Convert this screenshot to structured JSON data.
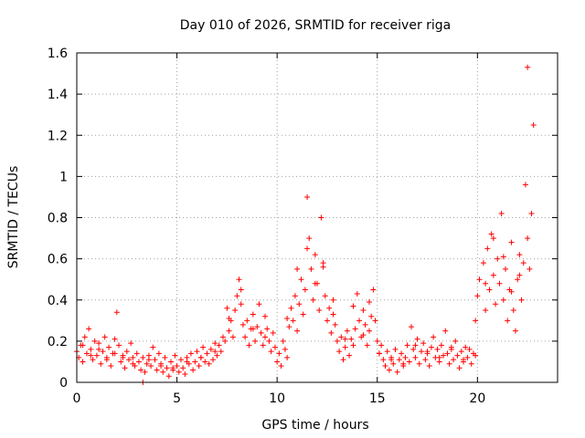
{
  "chart_data": {
    "type": "scatter",
    "title": "Day 010 of 2026, SRMTID for receiver riga",
    "xlabel": "GPS time / hours",
    "ylabel": "SRMTID / TECUs",
    "xlim": [
      0,
      24
    ],
    "ylim": [
      0,
      1.6
    ],
    "xticks": [
      0,
      5,
      10,
      15,
      20
    ],
    "xtick_labels": [
      "0",
      "5",
      "10",
      "15",
      "20"
    ],
    "yticks": [
      0,
      0.2,
      0.4,
      0.6,
      0.8,
      1.0,
      1.2,
      1.4,
      1.6
    ],
    "ytick_labels": [
      "0",
      "0.2",
      "0.4",
      "0.6",
      "0.8",
      "1",
      "1.2",
      "1.4",
      "1.6"
    ],
    "grid": true,
    "marker": "+",
    "color": "#ff0000",
    "series": [
      {
        "name": "SRMTID",
        "x": [
          0.0,
          0.1,
          0.2,
          0.3,
          0.4,
          0.5,
          0.6,
          0.7,
          0.8,
          0.9,
          1.0,
          1.1,
          1.2,
          1.3,
          1.4,
          1.5,
          1.6,
          1.7,
          1.8,
          1.9,
          2.0,
          2.1,
          2.2,
          2.3,
          2.4,
          2.5,
          2.6,
          2.7,
          2.8,
          2.9,
          3.0,
          3.1,
          3.2,
          3.3,
          3.4,
          3.5,
          3.6,
          3.7,
          3.8,
          3.9,
          4.0,
          4.1,
          4.2,
          4.3,
          4.4,
          4.5,
          4.6,
          4.7,
          4.8,
          4.9,
          5.0,
          5.1,
          5.2,
          5.3,
          5.4,
          5.5,
          5.6,
          5.7,
          5.8,
          5.9,
          6.0,
          6.1,
          6.2,
          6.3,
          6.4,
          6.5,
          6.6,
          6.7,
          6.8,
          6.9,
          7.0,
          7.1,
          7.2,
          7.3,
          7.4,
          7.5,
          7.6,
          7.7,
          7.8,
          7.9,
          8.0,
          8.1,
          8.2,
          8.3,
          8.4,
          8.5,
          8.6,
          8.7,
          8.8,
          8.9,
          9.0,
          9.1,
          9.2,
          9.3,
          9.4,
          9.5,
          9.6,
          9.7,
          9.8,
          9.9,
          10.0,
          10.1,
          10.2,
          10.3,
          10.4,
          10.5,
          10.6,
          10.7,
          10.8,
          10.9,
          11.0,
          11.1,
          11.2,
          11.3,
          11.4,
          11.5,
          11.6,
          11.7,
          11.8,
          11.9,
          12.0,
          12.1,
          12.2,
          12.3,
          12.4,
          12.5,
          12.6,
          12.7,
          12.8,
          12.9,
          13.0,
          13.1,
          13.2,
          13.3,
          13.4,
          13.5,
          13.6,
          13.7,
          13.8,
          13.9,
          14.0,
          14.1,
          14.2,
          14.3,
          14.4,
          14.5,
          14.6,
          14.7,
          14.8,
          14.9,
          15.0,
          15.1,
          15.2,
          15.3,
          15.4,
          15.5,
          15.6,
          15.7,
          15.8,
          15.9,
          16.0,
          16.1,
          16.2,
          16.3,
          16.4,
          16.5,
          16.6,
          16.7,
          16.8,
          16.9,
          17.0,
          17.1,
          17.2,
          17.3,
          17.4,
          17.5,
          17.6,
          17.7,
          17.8,
          17.9,
          18.0,
          18.1,
          18.2,
          18.3,
          18.4,
          18.5,
          18.6,
          18.7,
          18.8,
          18.9,
          19.0,
          19.1,
          19.2,
          19.3,
          19.4,
          19.5,
          19.6,
          19.7,
          19.8,
          19.9,
          20.0,
          20.1,
          20.3,
          20.4,
          20.5,
          20.6,
          20.7,
          20.8,
          20.9,
          21.0,
          21.1,
          21.2,
          21.3,
          21.4,
          21.5,
          21.6,
          21.7,
          21.8,
          21.9,
          22.0,
          22.1,
          22.2,
          22.3,
          22.4,
          22.5,
          22.6,
          22.7,
          22.8,
          0.3,
          0.7,
          1.1,
          1.5,
          1.9,
          2.3,
          2.8,
          3.6,
          4.2,
          4.8,
          5.5,
          6.2,
          6.9,
          7.6,
          8.2,
          8.8,
          9.4,
          10.5,
          11.0,
          11.5,
          11.9,
          12.3,
          12.8,
          13.4,
          13.8,
          14.3,
          14.6,
          15.1,
          15.7,
          16.3,
          16.9,
          17.5,
          18.1,
          18.7,
          19.3,
          19.9,
          20.4,
          20.8,
          21.3,
          21.7,
          22.1,
          22.5,
          3.3
        ],
        "y": [
          0.15,
          0.12,
          0.18,
          0.1,
          0.22,
          0.14,
          0.26,
          0.16,
          0.11,
          0.2,
          0.13,
          0.19,
          0.09,
          0.15,
          0.22,
          0.12,
          0.17,
          0.08,
          0.14,
          0.21,
          0.34,
          0.18,
          0.1,
          0.13,
          0.07,
          0.15,
          0.11,
          0.19,
          0.12,
          0.08,
          0.14,
          0.1,
          0.06,
          0.12,
          0.05,
          0.09,
          0.13,
          0.08,
          0.17,
          0.11,
          0.06,
          0.14,
          0.09,
          0.05,
          0.12,
          0.07,
          0.03,
          0.1,
          0.06,
          0.13,
          0.08,
          0.05,
          0.11,
          0.07,
          0.04,
          0.12,
          0.09,
          0.14,
          0.06,
          0.1,
          0.15,
          0.08,
          0.12,
          0.17,
          0.1,
          0.14,
          0.09,
          0.16,
          0.11,
          0.19,
          0.13,
          0.18,
          0.15,
          0.22,
          0.2,
          0.36,
          0.25,
          0.3,
          0.22,
          0.35,
          0.42,
          0.5,
          0.38,
          0.28,
          0.22,
          0.3,
          0.18,
          0.26,
          0.33,
          0.2,
          0.27,
          0.38,
          0.24,
          0.18,
          0.32,
          0.26,
          0.2,
          0.15,
          0.24,
          0.17,
          0.1,
          0.14,
          0.08,
          0.2,
          0.16,
          0.12,
          0.27,
          0.36,
          0.3,
          0.42,
          0.25,
          0.38,
          0.5,
          0.33,
          0.45,
          0.9,
          0.7,
          0.55,
          0.4,
          0.62,
          0.48,
          0.35,
          0.8,
          0.58,
          0.42,
          0.3,
          0.36,
          0.24,
          0.4,
          0.28,
          0.2,
          0.15,
          0.22,
          0.11,
          0.17,
          0.25,
          0.13,
          0.21,
          0.18,
          0.26,
          0.43,
          0.3,
          0.22,
          0.35,
          0.28,
          0.18,
          0.25,
          0.32,
          0.45,
          0.3,
          0.2,
          0.14,
          0.18,
          0.11,
          0.08,
          0.15,
          0.06,
          0.12,
          0.09,
          0.16,
          0.05,
          0.11,
          0.14,
          0.08,
          0.12,
          0.18,
          0.1,
          0.27,
          0.16,
          0.12,
          0.21,
          0.09,
          0.15,
          0.19,
          0.11,
          0.14,
          0.08,
          0.17,
          0.22,
          0.12,
          0.16,
          0.1,
          0.18,
          0.13,
          0.25,
          0.14,
          0.09,
          0.16,
          0.11,
          0.2,
          0.13,
          0.07,
          0.15,
          0.1,
          0.17,
          0.12,
          0.16,
          0.09,
          0.14,
          0.3,
          0.42,
          0.5,
          0.58,
          0.35,
          0.65,
          0.45,
          0.72,
          0.52,
          0.38,
          0.6,
          0.48,
          0.82,
          0.4,
          0.55,
          0.3,
          0.45,
          0.68,
          0.35,
          0.25,
          0.5,
          0.62,
          0.4,
          0.58,
          0.96,
          0.7,
          0.55,
          0.82,
          1.25,
          0.18,
          0.13,
          0.16,
          0.11,
          0.14,
          0.12,
          0.09,
          0.11,
          0.08,
          0.07,
          0.1,
          0.12,
          0.15,
          0.31,
          0.45,
          0.26,
          0.22,
          0.31,
          0.55,
          0.65,
          0.48,
          0.56,
          0.33,
          0.21,
          0.37,
          0.23,
          0.39,
          0.14,
          0.11,
          0.09,
          0.18,
          0.15,
          0.12,
          0.17,
          0.11,
          0.13,
          0.48,
          0.7,
          0.61,
          0.44,
          0.52,
          1.53,
          0.0
        ]
      }
    ]
  }
}
